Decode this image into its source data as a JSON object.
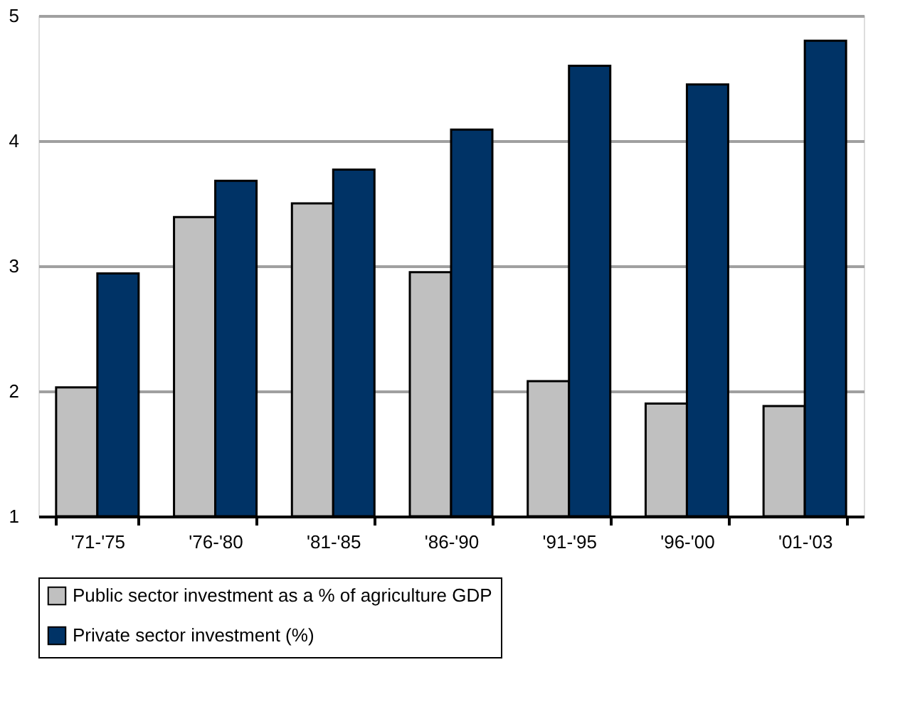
{
  "chart_data": {
    "type": "bar",
    "categories": [
      "'71-'75",
      "'76-'80",
      "'81-'85",
      "'86-'90",
      "'91-'95",
      "'96-'00",
      "'01-'03"
    ],
    "series": [
      {
        "name": "Public sector investment as a % of agriculture GDP",
        "color": "#c0c0c0",
        "values": [
          2.03,
          3.39,
          3.5,
          2.95,
          2.08,
          1.9,
          1.88
        ]
      },
      {
        "name": "Private sector investment (%)",
        "color": "#003366",
        "values": [
          2.94,
          3.68,
          3.77,
          4.09,
          4.6,
          4.45,
          4.8
        ]
      }
    ],
    "ylim": [
      1,
      5
    ],
    "yticks": [
      1,
      2,
      3,
      4,
      5
    ],
    "grid": "y",
    "legend": "bottom"
  }
}
